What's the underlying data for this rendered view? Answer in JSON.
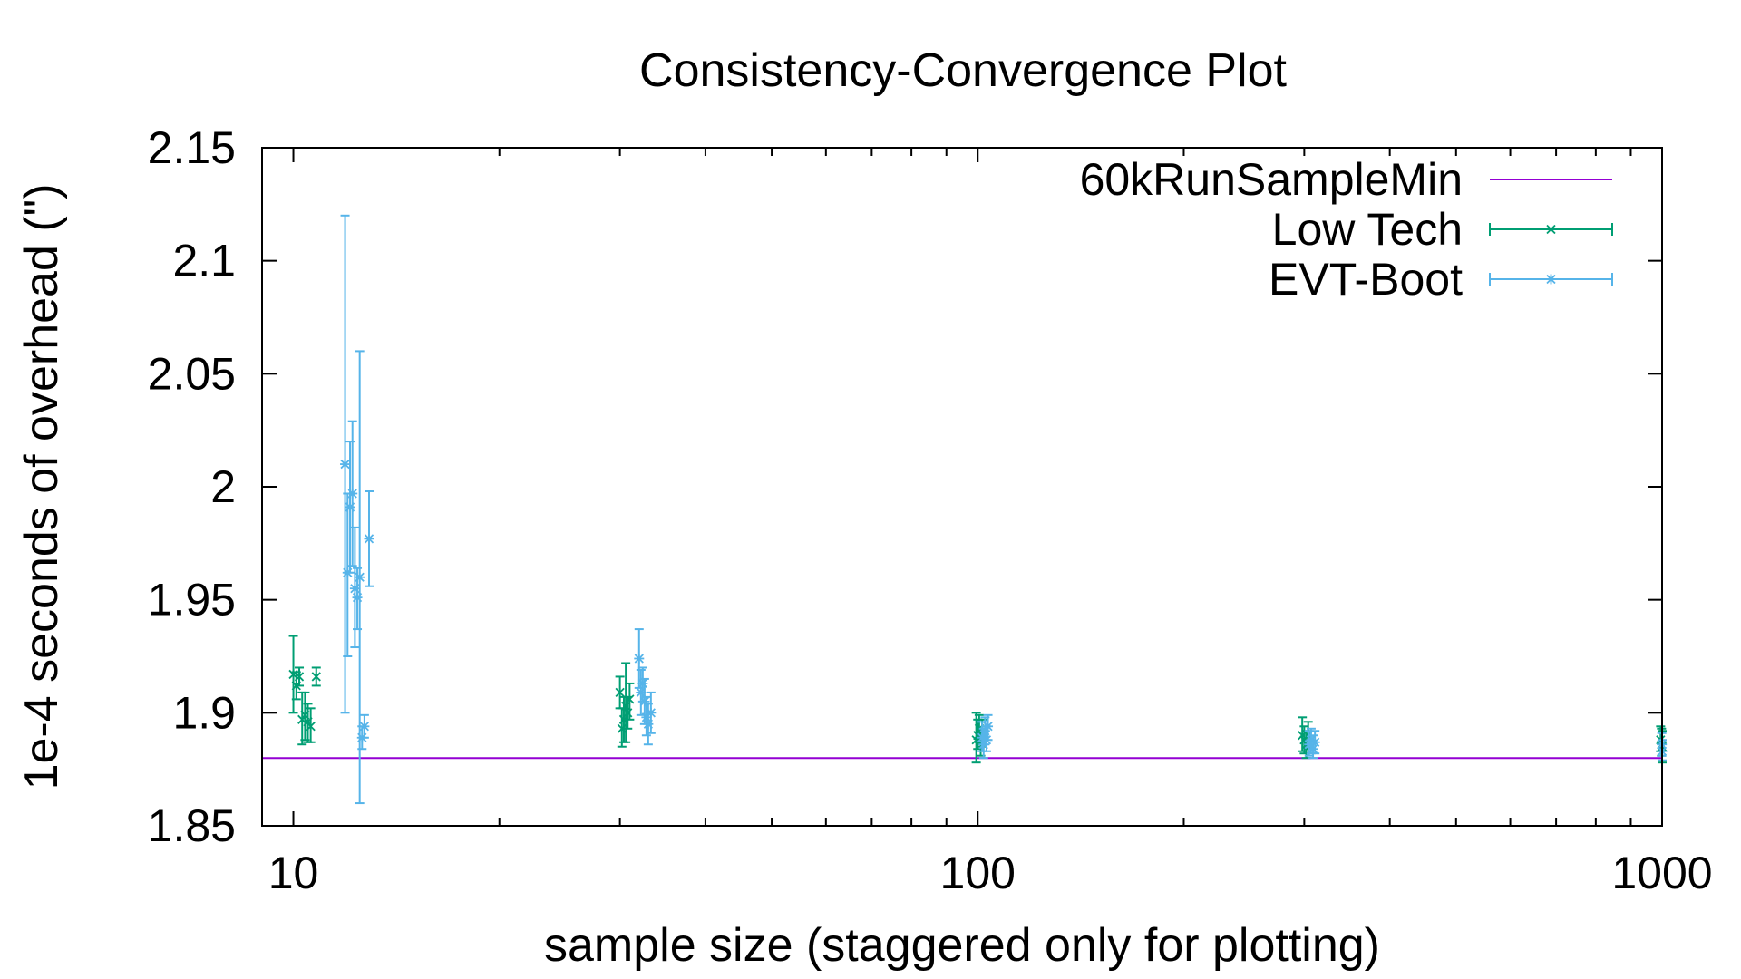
{
  "chart_data": {
    "type": "scatter",
    "title": "Consistency-Convergence Plot",
    "xlabel": "sample size (staggered only for plotting)",
    "ylabel": "1e-4 seconds of overhead (\")",
    "x_scale": "log",
    "xlim": [
      9,
      1000
    ],
    "ylim": [
      1.85,
      2.15
    ],
    "x_ticks": [
      10,
      100,
      1000
    ],
    "x_tick_labels": [
      "10",
      "100",
      "1000"
    ],
    "y_ticks": [
      1.85,
      1.9,
      1.95,
      2.0,
      2.05,
      2.1,
      2.15
    ],
    "y_tick_labels": [
      "1.85",
      "1.9",
      "1.95",
      "2",
      "2.05",
      "2.1",
      "2.15"
    ],
    "grid": false,
    "legend_position": "top-right",
    "series": [
      {
        "name": "60kRunSampleMin",
        "kind": "hline",
        "color": "#9400d3",
        "y": 1.88
      },
      {
        "name": "Low Tech",
        "kind": "errorbar",
        "marker": "x",
        "color": "#009e73",
        "points": [
          {
            "x": 10.0,
            "y": 1.917,
            "low": 1.9,
            "high": 1.934
          },
          {
            "x": 10.1,
            "y": 1.912,
            "low": 1.906,
            "high": 1.918
          },
          {
            "x": 10.2,
            "y": 1.916,
            "low": 1.912,
            "high": 1.92
          },
          {
            "x": 10.3,
            "y": 1.897,
            "low": 1.886,
            "high": 1.909
          },
          {
            "x": 10.4,
            "y": 1.899,
            "low": 1.888,
            "high": 1.909
          },
          {
            "x": 10.5,
            "y": 1.896,
            "low": 1.887,
            "high": 1.904
          },
          {
            "x": 10.6,
            "y": 1.894,
            "low": 1.887,
            "high": 1.902
          },
          {
            "x": 10.8,
            "y": 1.916,
            "low": 1.912,
            "high": 1.92
          },
          {
            "x": 30.0,
            "y": 1.909,
            "low": 1.902,
            "high": 1.916
          },
          {
            "x": 30.2,
            "y": 1.893,
            "low": 1.885,
            "high": 1.902
          },
          {
            "x": 30.4,
            "y": 1.897,
            "low": 1.887,
            "high": 1.907
          },
          {
            "x": 30.6,
            "y": 1.903,
            "low": 1.887,
            "high": 1.922
          },
          {
            "x": 30.8,
            "y": 1.9,
            "low": 1.893,
            "high": 1.907
          },
          {
            "x": 31.0,
            "y": 1.906,
            "low": 1.897,
            "high": 1.913
          },
          {
            "x": 99.5,
            "y": 1.888,
            "low": 1.878,
            "high": 1.9
          },
          {
            "x": 100.0,
            "y": 1.89,
            "low": 1.884,
            "high": 1.897
          },
          {
            "x": 100.5,
            "y": 1.893,
            "low": 1.887,
            "high": 1.899
          },
          {
            "x": 101.0,
            "y": 1.887,
            "low": 1.881,
            "high": 1.893
          },
          {
            "x": 101.5,
            "y": 1.891,
            "low": 1.885,
            "high": 1.897
          },
          {
            "x": 298,
            "y": 1.89,
            "low": 1.883,
            "high": 1.898
          },
          {
            "x": 300,
            "y": 1.888,
            "low": 1.882,
            "high": 1.894
          },
          {
            "x": 302,
            "y": 1.886,
            "low": 1.88,
            "high": 1.892
          },
          {
            "x": 304,
            "y": 1.89,
            "low": 1.884,
            "high": 1.896
          },
          {
            "x": 995,
            "y": 1.888,
            "low": 1.883,
            "high": 1.894
          },
          {
            "x": 998,
            "y": 1.886,
            "low": 1.881,
            "high": 1.893
          },
          {
            "x": 1000,
            "y": 1.885,
            "low": 1.878,
            "high": 1.892
          }
        ]
      },
      {
        "name": "EVT-Boot",
        "kind": "errorbar",
        "marker": "*",
        "color": "#56b4e9",
        "points": [
          {
            "x": 11.9,
            "y": 2.01,
            "low": 1.9,
            "high": 2.12
          },
          {
            "x": 12.0,
            "y": 1.962,
            "low": 1.925,
            "high": 1.997
          },
          {
            "x": 12.1,
            "y": 1.991,
            "low": 1.962,
            "high": 2.02
          },
          {
            "x": 12.2,
            "y": 1.997,
            "low": 1.965,
            "high": 2.029
          },
          {
            "x": 12.3,
            "y": 1.955,
            "low": 1.929,
            "high": 1.982
          },
          {
            "x": 12.4,
            "y": 1.951,
            "low": 1.937,
            "high": 1.964
          },
          {
            "x": 12.5,
            "y": 1.96,
            "low": 1.86,
            "high": 2.06
          },
          {
            "x": 12.6,
            "y": 1.889,
            "low": 1.884,
            "high": 1.894
          },
          {
            "x": 12.7,
            "y": 1.894,
            "low": 1.889,
            "high": 1.899
          },
          {
            "x": 12.9,
            "y": 1.977,
            "low": 1.956,
            "high": 1.998
          },
          {
            "x": 32.0,
            "y": 1.924,
            "low": 1.911,
            "high": 1.937
          },
          {
            "x": 32.2,
            "y": 1.909,
            "low": 1.899,
            "high": 1.919
          },
          {
            "x": 32.4,
            "y": 1.913,
            "low": 1.905,
            "high": 1.92
          },
          {
            "x": 32.6,
            "y": 1.905,
            "low": 1.895,
            "high": 1.915
          },
          {
            "x": 32.8,
            "y": 1.898,
            "low": 1.89,
            "high": 1.907
          },
          {
            "x": 33.0,
            "y": 1.895,
            "low": 1.886,
            "high": 1.904
          },
          {
            "x": 33.3,
            "y": 1.9,
            "low": 1.891,
            "high": 1.909
          },
          {
            "x": 101.5,
            "y": 1.889,
            "low": 1.883,
            "high": 1.896
          },
          {
            "x": 102.0,
            "y": 1.886,
            "low": 1.88,
            "high": 1.893
          },
          {
            "x": 102.5,
            "y": 1.892,
            "low": 1.886,
            "high": 1.898
          },
          {
            "x": 103.0,
            "y": 1.888,
            "low": 1.883,
            "high": 1.894
          },
          {
            "x": 103.5,
            "y": 1.894,
            "low": 1.888,
            "high": 1.899
          },
          {
            "x": 305,
            "y": 1.886,
            "low": 1.881,
            "high": 1.892
          },
          {
            "x": 307,
            "y": 1.888,
            "low": 1.882,
            "high": 1.893
          },
          {
            "x": 309,
            "y": 1.884,
            "low": 1.88,
            "high": 1.89
          },
          {
            "x": 311,
            "y": 1.887,
            "low": 1.882,
            "high": 1.892
          },
          {
            "x": 999,
            "y": 1.886,
            "low": 1.881,
            "high": 1.891
          },
          {
            "x": 1000,
            "y": 1.883,
            "low": 1.879,
            "high": 1.888
          }
        ]
      }
    ]
  }
}
